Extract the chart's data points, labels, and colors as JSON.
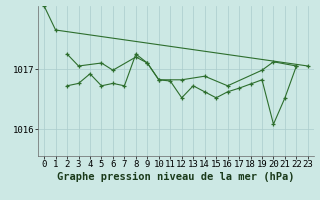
{
  "bg_color": "#cce8e4",
  "grid_color": "#aacccc",
  "line_color": "#2d6e2d",
  "marker_color": "#2d6e2d",
  "title": "Graphe pression niveau de la mer (hPa)",
  "ylim": [
    1015.55,
    1018.05
  ],
  "xlim": [
    -0.5,
    23.5
  ],
  "yticks": [
    1016,
    1017
  ],
  "xticks": [
    0,
    1,
    2,
    3,
    4,
    5,
    6,
    7,
    8,
    9,
    10,
    11,
    12,
    13,
    14,
    15,
    16,
    17,
    18,
    19,
    20,
    21,
    22,
    23
  ],
  "series": [
    [
      1018.05,
      1017.65,
      null,
      null,
      null,
      null,
      null,
      null,
      null,
      null,
      null,
      null,
      null,
      null,
      null,
      null,
      null,
      null,
      null,
      null,
      null,
      null,
      null,
      1017.05
    ],
    [
      null,
      null,
      1017.25,
      1017.05,
      null,
      1017.1,
      1016.98,
      null,
      1017.2,
      1017.1,
      1016.82,
      null,
      1016.82,
      null,
      1016.88,
      null,
      1016.72,
      null,
      null,
      1016.98,
      1017.12,
      null,
      1017.05,
      null
    ],
    [
      null,
      null,
      1016.72,
      1016.76,
      1016.92,
      1016.72,
      1016.76,
      1016.72,
      1017.25,
      1017.1,
      1016.82,
      1016.8,
      1016.52,
      1016.72,
      1016.62,
      1016.52,
      1016.62,
      1016.68,
      1016.75,
      1016.82,
      1016.08,
      1016.52,
      1017.05,
      null
    ]
  ],
  "title_fontsize": 7.5,
  "tick_fontsize": 6.5
}
